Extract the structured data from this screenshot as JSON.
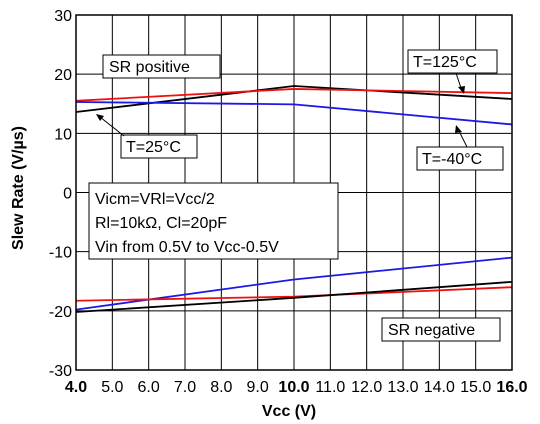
{
  "chart_data": {
    "type": "line",
    "xlabel": "Vcc (V)",
    "ylabel": "Slew Rate (V/µs)",
    "xlim": [
      4.0,
      16.0
    ],
    "ylim": [
      -30,
      30
    ],
    "x_ticks": [
      4.0,
      5.0,
      6.0,
      7.0,
      8.0,
      9.0,
      10.0,
      11.0,
      12.0,
      13.0,
      14.0,
      15.0,
      16.0
    ],
    "x_tick_labels": [
      "4.0",
      "5.0",
      "6.0",
      "7.0",
      "8.0",
      "9.0",
      "10.0",
      "11.0",
      "12.0",
      "13.0",
      "14.0",
      "15.0",
      "16.0"
    ],
    "x_tick_bold": [
      "4.0",
      "10.0",
      "16.0"
    ],
    "y_ticks": [
      -30,
      -20,
      -10,
      0,
      10,
      20,
      30
    ],
    "y_tick_labels": [
      "-30",
      "-20",
      "-10",
      "0",
      "10",
      "20",
      "30"
    ],
    "grid": true,
    "series": [
      {
        "color": "#000000",
        "x": [
          4.0,
          10.0,
          16.0
        ],
        "y": [
          13.6,
          18.0,
          15.8
        ]
      },
      {
        "color": "#ee1111",
        "x": [
          4.0,
          10.0,
          16.0
        ],
        "y": [
          15.5,
          17.5,
          16.8
        ]
      },
      {
        "color": "#1a1ae6",
        "x": [
          4.0,
          10.0,
          16.0
        ],
        "y": [
          15.3,
          14.9,
          11.5
        ]
      },
      {
        "color": "#1a1ae6",
        "x": [
          4.0,
          10.0,
          16.0
        ],
        "y": [
          -19.8,
          -14.7,
          -11.0
        ]
      },
      {
        "color": "#ee1111",
        "x": [
          4.0,
          10.0,
          16.0
        ],
        "y": [
          -18.3,
          -17.6,
          -16.0
        ]
      },
      {
        "color": "#000000",
        "x": [
          4.0,
          10.0,
          16.0
        ],
        "y": [
          -20.2,
          -17.8,
          -15.1
        ]
      }
    ],
    "annotations": {
      "sr_positive": "SR positive",
      "sr_negative": "SR negative",
      "t125": "T=125°C",
      "t25": "T=25°C",
      "tm40": "T=-40°C",
      "conditions": [
        "Vicm=VRl=Vcc/2",
        "Rl=10kΩ, Cl=20pF",
        "Vin from 0.5V to Vcc-0.5V"
      ]
    }
  }
}
